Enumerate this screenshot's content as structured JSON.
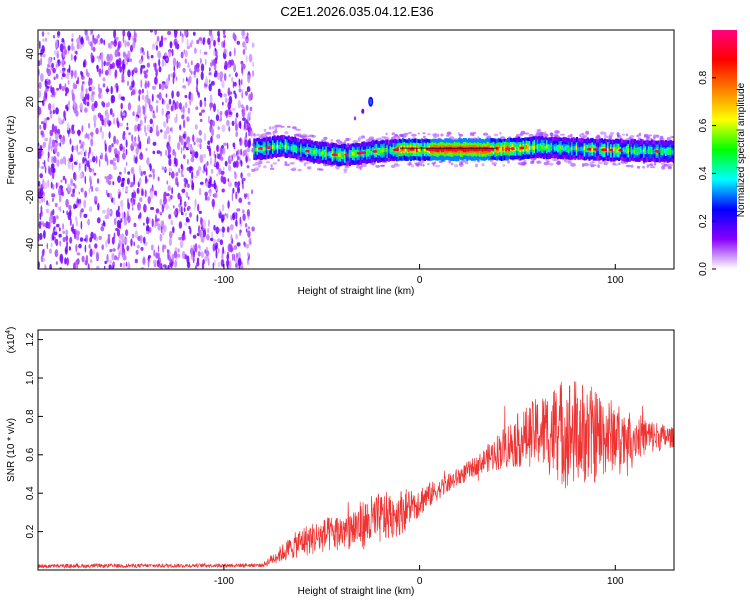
{
  "title": "C2E1.2026.035.04.12.E36",
  "chart_data": [
    {
      "type": "heatmap",
      "name": "spectrogram",
      "xlabel": "Height of straight line (km)",
      "ylabel": "Frequency (Hz)",
      "xlim": [
        -195,
        130
      ],
      "ylim": [
        -50,
        50
      ],
      "xticks": [
        -100,
        0,
        100
      ],
      "xtick_labels": [
        "-100",
        "0",
        "100"
      ],
      "yticks": [
        -40,
        -20,
        0,
        20,
        40
      ],
      "ytick_labels": [
        "-40",
        "-20",
        "0",
        "20",
        "40"
      ],
      "noise_region_x": [
        -195,
        -85
      ],
      "signal_band": {
        "center_hz": [
          {
            "x": -85,
            "y": 0
          },
          {
            "x": -70,
            "y": 1.5
          },
          {
            "x": -55,
            "y": -1
          },
          {
            "x": -40,
            "y": -2.5
          },
          {
            "x": -25,
            "y": -1
          },
          {
            "x": -10,
            "y": 0
          },
          {
            "x": 10,
            "y": 0
          },
          {
            "x": 40,
            "y": 0
          },
          {
            "x": 60,
            "y": 1
          },
          {
            "x": 90,
            "y": 0
          },
          {
            "x": 130,
            "y": -1
          }
        ],
        "peak_x_range": [
          5,
          35
        ]
      },
      "artifact": {
        "x": -25,
        "y": 20
      },
      "colorbar": {
        "label": "Normalized spectral amplitude",
        "range": [
          0,
          1
        ],
        "ticks": [
          0,
          0.2,
          0.4,
          0.6,
          0.8
        ],
        "tick_labels": [
          "0.0",
          "0.2",
          "0.4",
          "0.6",
          "0.8"
        ],
        "colors": [
          "#ffffff",
          "#8800ff",
          "#0000ff",
          "#00ffff",
          "#00ff00",
          "#ffff00",
          "#ff8000",
          "#ff0000",
          "#ff0080"
        ]
      }
    },
    {
      "type": "line",
      "name": "snr",
      "xlabel": "Height of straight line (km)",
      "ylabel": "SNR (10 * v/v)",
      "y_multiplier": "(x10",
      "y_multiplier_exp": "4",
      "xlim": [
        -195,
        130
      ],
      "ylim": [
        0,
        1.25
      ],
      "xticks": [
        -100,
        0,
        100
      ],
      "xtick_labels": [
        "-100",
        "0",
        "100"
      ],
      "yticks": [
        0.2,
        0.4,
        0.6,
        0.8,
        1.0,
        1.2
      ],
      "ytick_labels": [
        "0.2",
        "0.4",
        "0.6",
        "0.8",
        "1.0",
        "1.2"
      ],
      "color": "#ee3333",
      "envelope": [
        {
          "x": -195,
          "y": 0.02,
          "amp": 0.01
        },
        {
          "x": -80,
          "y": 0.025,
          "amp": 0.01
        },
        {
          "x": -75,
          "y": 0.06,
          "amp": 0.03
        },
        {
          "x": -60,
          "y": 0.15,
          "amp": 0.08
        },
        {
          "x": -40,
          "y": 0.2,
          "amp": 0.1
        },
        {
          "x": -25,
          "y": 0.25,
          "amp": 0.14
        },
        {
          "x": -10,
          "y": 0.3,
          "amp": 0.12
        },
        {
          "x": 10,
          "y": 0.42,
          "amp": 0.05
        },
        {
          "x": 30,
          "y": 0.55,
          "amp": 0.05
        },
        {
          "x": 45,
          "y": 0.65,
          "amp": 0.12
        },
        {
          "x": 60,
          "y": 0.72,
          "amp": 0.18
        },
        {
          "x": 75,
          "y": 0.72,
          "amp": 0.3
        },
        {
          "x": 90,
          "y": 0.7,
          "amp": 0.25
        },
        {
          "x": 105,
          "y": 0.7,
          "amp": 0.14
        },
        {
          "x": 130,
          "y": 0.69,
          "amp": 0.05
        }
      ]
    }
  ]
}
